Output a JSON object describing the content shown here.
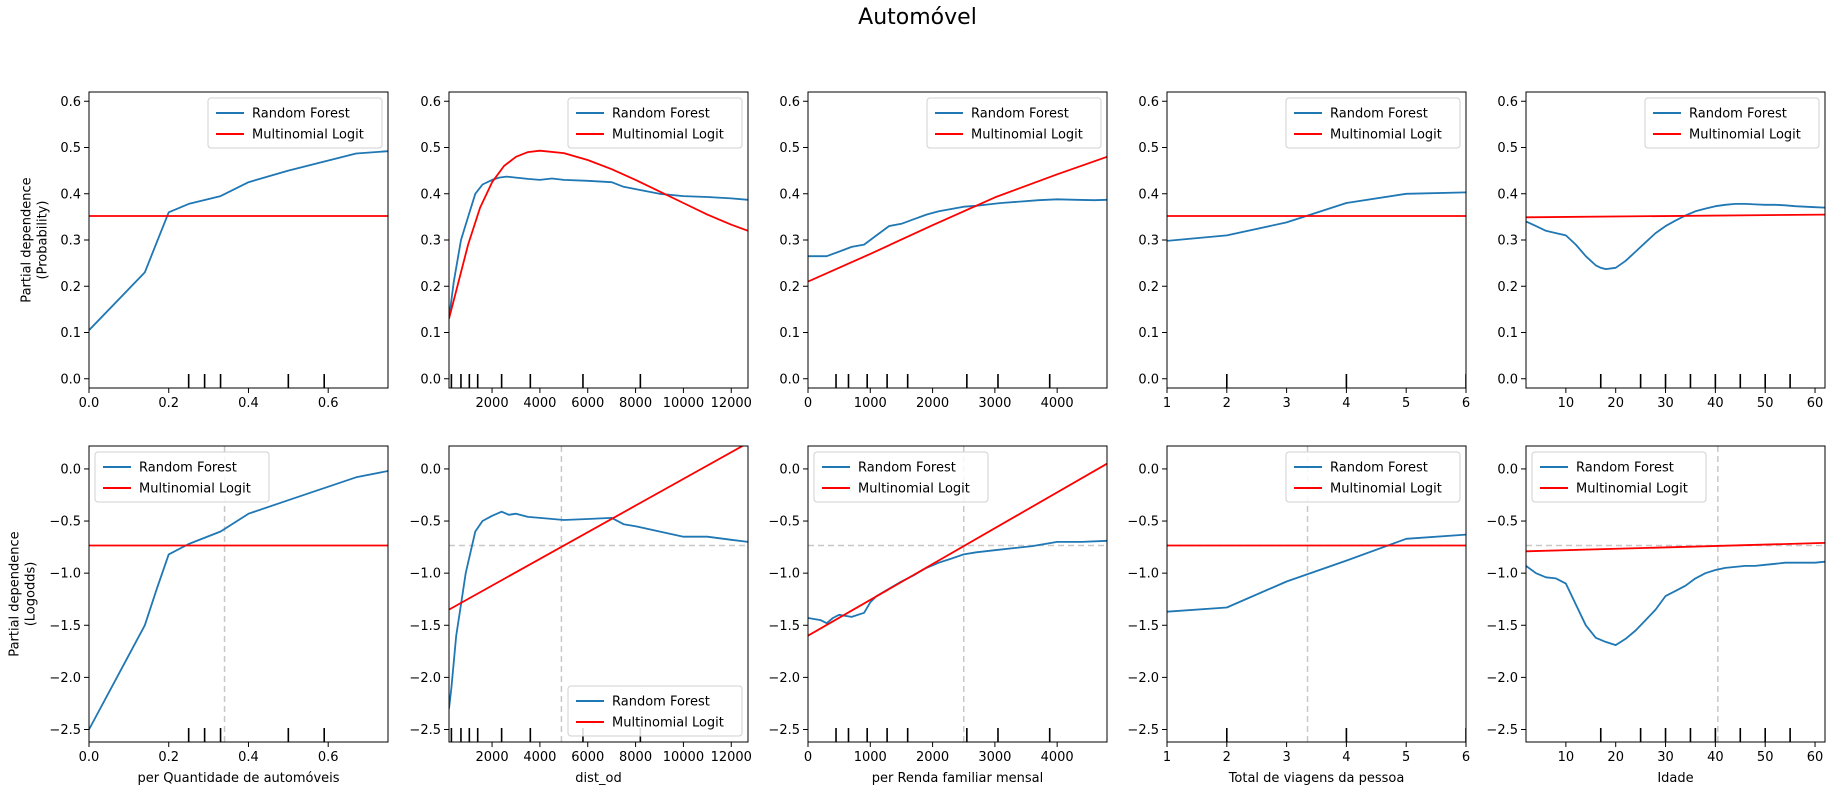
{
  "figure": {
    "title": "Automóvel"
  },
  "legend_labels": {
    "rf": "Random Forest",
    "ml": "Multinomial Logit"
  },
  "colors": {
    "rf": "#1f77b4",
    "ml": "#ff0000",
    "ref": "#c8c8c8",
    "axis": "#000000"
  },
  "chart_data": [
    {
      "type": "line",
      "row": 0,
      "col": 0,
      "xlabel": "",
      "ylabel": [
        "Partial dependence",
        "(Probability)"
      ],
      "xlim": [
        0,
        0.75
      ],
      "ylim": [
        -0.02,
        0.62
      ],
      "xticks": [
        0.0,
        0.2,
        0.4,
        0.6
      ],
      "xtick_labels": [
        "0.0",
        "0.2",
        "0.4",
        "0.6"
      ],
      "yticks": [
        0.0,
        0.1,
        0.2,
        0.3,
        0.4,
        0.5,
        0.6
      ],
      "ytick_labels": [
        "0.0",
        "0.1",
        "0.2",
        "0.3",
        "0.4",
        "0.5",
        "0.6"
      ],
      "legend_position": "upper right",
      "rug": [
        0.25,
        0.29,
        0.33,
        0.5,
        0.59
      ],
      "series": [
        {
          "name": "Random Forest",
          "color": "#1f77b4",
          "x": [
            0.0,
            0.14,
            0.2,
            0.25,
            0.33,
            0.4,
            0.5,
            0.67,
            0.75
          ],
          "y": [
            0.105,
            0.23,
            0.36,
            0.378,
            0.395,
            0.425,
            0.45,
            0.487,
            0.492
          ]
        },
        {
          "name": "Multinomial Logit",
          "color": "#ff0000",
          "x": [
            0.0,
            0.75
          ],
          "y": [
            0.352,
            0.352
          ]
        }
      ]
    },
    {
      "type": "line",
      "row": 0,
      "col": 1,
      "xlabel": "",
      "ylabel": [],
      "xlim": [
        200,
        12700
      ],
      "ylim": [
        -0.02,
        0.62
      ],
      "xticks": [
        2000,
        4000,
        6000,
        8000,
        10000,
        12000
      ],
      "xtick_labels": [
        "2000",
        "4000",
        "6000",
        "8000",
        "10000",
        "12000"
      ],
      "yticks": [
        0.0,
        0.1,
        0.2,
        0.3,
        0.4,
        0.5,
        0.6
      ],
      "ytick_labels": [
        "0.0",
        "0.1",
        "0.2",
        "0.3",
        "0.4",
        "0.5",
        "0.6"
      ],
      "legend_position": "upper right",
      "rug": [
        300,
        700,
        1050,
        1400,
        2400,
        3600,
        5800,
        8200
      ],
      "series": [
        {
          "name": "Random Forest",
          "color": "#1f77b4",
          "x": [
            200,
            400,
            700,
            1000,
            1300,
            1600,
            2000,
            2300,
            2600,
            3000,
            3500,
            4000,
            4500,
            5000,
            6000,
            7000,
            7500,
            8000,
            9000,
            10000,
            11000,
            12000,
            12700
          ],
          "y": [
            0.13,
            0.21,
            0.3,
            0.35,
            0.4,
            0.42,
            0.43,
            0.435,
            0.437,
            0.435,
            0.432,
            0.43,
            0.433,
            0.43,
            0.428,
            0.425,
            0.415,
            0.41,
            0.4,
            0.395,
            0.393,
            0.39,
            0.387
          ]
        },
        {
          "name": "Multinomial Logit",
          "color": "#ff0000",
          "x": [
            200,
            500,
            1000,
            1500,
            2000,
            2500,
            3000,
            3500,
            4000,
            5000,
            6000,
            7000,
            8000,
            9000,
            10000,
            11000,
            12000,
            12700
          ],
          "y": [
            0.13,
            0.19,
            0.29,
            0.37,
            0.425,
            0.46,
            0.48,
            0.49,
            0.493,
            0.488,
            0.473,
            0.453,
            0.43,
            0.405,
            0.38,
            0.355,
            0.333,
            0.32
          ]
        }
      ]
    },
    {
      "type": "line",
      "row": 0,
      "col": 2,
      "xlabel": "",
      "ylabel": [],
      "xlim": [
        0,
        4800
      ],
      "ylim": [
        -0.02,
        0.62
      ],
      "xticks": [
        0,
        1000,
        2000,
        3000,
        4000
      ],
      "xtick_labels": [
        "0",
        "1000",
        "2000",
        "3000",
        "4000"
      ],
      "yticks": [
        0.0,
        0.1,
        0.2,
        0.3,
        0.4,
        0.5,
        0.6
      ],
      "ytick_labels": [
        "0.0",
        "0.1",
        "0.2",
        "0.3",
        "0.4",
        "0.5",
        "0.6"
      ],
      "legend_position": "upper right",
      "rug": [
        450,
        650,
        950,
        1270,
        1600,
        2550,
        3050,
        3880
      ],
      "series": [
        {
          "name": "Random Forest",
          "color": "#1f77b4",
          "x": [
            0,
            300,
            500,
            700,
            900,
            1100,
            1300,
            1500,
            1700,
            1900,
            2100,
            2300,
            2500,
            2700,
            2900,
            3100,
            3400,
            3700,
            4000,
            4300,
            4600,
            4800
          ],
          "y": [
            0.265,
            0.265,
            0.275,
            0.285,
            0.29,
            0.31,
            0.33,
            0.335,
            0.345,
            0.355,
            0.362,
            0.367,
            0.372,
            0.374,
            0.377,
            0.38,
            0.383,
            0.386,
            0.388,
            0.387,
            0.386,
            0.387
          ]
        },
        {
          "name": "Multinomial Logit",
          "color": "#ff0000",
          "x": [
            0,
            1000,
            2000,
            3000,
            4000,
            4800
          ],
          "y": [
            0.21,
            0.27,
            0.332,
            0.392,
            0.442,
            0.48
          ]
        }
      ]
    },
    {
      "type": "line",
      "row": 0,
      "col": 3,
      "xlabel": "",
      "ylabel": [],
      "xlim": [
        1,
        6
      ],
      "ylim": [
        -0.02,
        0.62
      ],
      "xticks": [
        1,
        2,
        3,
        4,
        5,
        6
      ],
      "xtick_labels": [
        "1",
        "2",
        "3",
        "4",
        "5",
        "6"
      ],
      "yticks": [
        0.0,
        0.1,
        0.2,
        0.3,
        0.4,
        0.5,
        0.6
      ],
      "ytick_labels": [
        "0.0",
        "0.1",
        "0.2",
        "0.3",
        "0.4",
        "0.5",
        "0.6"
      ],
      "legend_position": "upper right",
      "rug": [
        2,
        4,
        6
      ],
      "series": [
        {
          "name": "Random Forest",
          "color": "#1f77b4",
          "x": [
            1,
            2,
            3,
            4,
            5,
            6
          ],
          "y": [
            0.298,
            0.31,
            0.338,
            0.38,
            0.4,
            0.403
          ]
        },
        {
          "name": "Multinomial Logit",
          "color": "#ff0000",
          "x": [
            1,
            6
          ],
          "y": [
            0.352,
            0.352
          ]
        }
      ]
    },
    {
      "type": "line",
      "row": 0,
      "col": 4,
      "xlabel": "",
      "ylabel": [],
      "xlim": [
        2,
        62
      ],
      "ylim": [
        -0.02,
        0.62
      ],
      "xticks": [
        10,
        20,
        30,
        40,
        50,
        60
      ],
      "xtick_labels": [
        "10",
        "20",
        "30",
        "40",
        "50",
        "60"
      ],
      "yticks": [
        0.0,
        0.1,
        0.2,
        0.3,
        0.4,
        0.5,
        0.6
      ],
      "ytick_labels": [
        "0.0",
        "0.1",
        "0.2",
        "0.3",
        "0.4",
        "0.5",
        "0.6"
      ],
      "legend_position": "upper right",
      "rug": [
        17,
        25,
        30,
        35,
        40,
        45,
        50,
        55
      ],
      "series": [
        {
          "name": "Random Forest",
          "color": "#1f77b4",
          "x": [
            2,
            4,
            6,
            8,
            10,
            12,
            14,
            16,
            17,
            18,
            20,
            22,
            24,
            26,
            28,
            30,
            32,
            34,
            36,
            38,
            40,
            42,
            44,
            46,
            48,
            50,
            52,
            54,
            56,
            58,
            60,
            62
          ],
          "y": [
            0.34,
            0.33,
            0.32,
            0.315,
            0.31,
            0.29,
            0.265,
            0.245,
            0.24,
            0.237,
            0.24,
            0.255,
            0.275,
            0.295,
            0.315,
            0.33,
            0.342,
            0.353,
            0.362,
            0.368,
            0.373,
            0.376,
            0.378,
            0.378,
            0.377,
            0.376,
            0.376,
            0.375,
            0.373,
            0.372,
            0.371,
            0.37
          ]
        },
        {
          "name": "Multinomial Logit",
          "color": "#ff0000",
          "x": [
            2,
            62
          ],
          "y": [
            0.349,
            0.355
          ]
        }
      ]
    },
    {
      "type": "line",
      "row": 1,
      "col": 0,
      "xlabel": "per Quantidade de automóveis",
      "ylabel": [
        "Partial dependence",
        "(Logodds)"
      ],
      "xlim": [
        0,
        0.75
      ],
      "ylim": [
        -2.62,
        0.22
      ],
      "xticks": [
        0.0,
        0.2,
        0.4,
        0.6
      ],
      "xtick_labels": [
        "0.0",
        "0.2",
        "0.4",
        "0.6"
      ],
      "yticks": [
        -2.5,
        -2.0,
        -1.5,
        -1.0,
        -0.5,
        0.0
      ],
      "ytick_labels": [
        "−2.5",
        "−2.0",
        "−1.5",
        "−1.0",
        "−0.5",
        "0.0"
      ],
      "legend_position": "upper left",
      "rug": [
        0.25,
        0.29,
        0.33,
        0.5,
        0.59
      ],
      "ref_vline": 0.34,
      "series": [
        {
          "name": "Random Forest",
          "color": "#1f77b4",
          "x": [
            0.0,
            0.14,
            0.17,
            0.2,
            0.25,
            0.33,
            0.4,
            0.5,
            0.67,
            0.75
          ],
          "y": [
            -2.5,
            -1.5,
            -1.15,
            -0.82,
            -0.72,
            -0.6,
            -0.43,
            -0.3,
            -0.08,
            -0.02
          ]
        },
        {
          "name": "Multinomial Logit",
          "color": "#ff0000",
          "x": [
            0.0,
            0.75
          ],
          "y": [
            -0.735,
            -0.735
          ]
        }
      ]
    },
    {
      "type": "line",
      "row": 1,
      "col": 1,
      "xlabel": "dist_od",
      "ylabel": [],
      "xlim": [
        200,
        12700
      ],
      "ylim": [
        -2.62,
        0.22
      ],
      "xticks": [
        2000,
        4000,
        6000,
        8000,
        10000,
        12000
      ],
      "xtick_labels": [
        "2000",
        "4000",
        "6000",
        "8000",
        "10000",
        "12000"
      ],
      "yticks": [
        -2.5,
        -2.0,
        -1.5,
        -1.0,
        -0.5,
        0.0
      ],
      "ytick_labels": [
        "−2.5",
        "−2.0",
        "−1.5",
        "−1.0",
        "−0.5",
        "0.0"
      ],
      "legend_position": "lower right",
      "rug": [
        300,
        700,
        1050,
        1400,
        2400,
        3600,
        5800,
        8200
      ],
      "ref_vline": 4900,
      "ref_hline": -0.735,
      "series": [
        {
          "name": "Random Forest",
          "color": "#1f77b4",
          "x": [
            200,
            300,
            500,
            700,
            900,
            1100,
            1300,
            1600,
            2000,
            2400,
            2700,
            3000,
            3500,
            4000,
            5000,
            6000,
            7000,
            7500,
            8000,
            9000,
            10000,
            11000,
            12000,
            12700
          ],
          "y": [
            -2.3,
            -2.1,
            -1.6,
            -1.3,
            -1.0,
            -0.8,
            -0.6,
            -0.5,
            -0.45,
            -0.41,
            -0.44,
            -0.43,
            -0.46,
            -0.47,
            -0.49,
            -0.48,
            -0.47,
            -0.53,
            -0.55,
            -0.6,
            -0.65,
            -0.65,
            -0.68,
            -0.7
          ]
        },
        {
          "name": "Multinomial Logit",
          "color": "#ff0000",
          "x": [
            200,
            12700
          ],
          "y": [
            -1.35,
            0.25
          ]
        }
      ]
    },
    {
      "type": "line",
      "row": 1,
      "col": 2,
      "xlabel": "per Renda familiar mensal",
      "ylabel": [],
      "xlim": [
        0,
        4800
      ],
      "ylim": [
        -2.62,
        0.22
      ],
      "xticks": [
        0,
        1000,
        2000,
        3000,
        4000
      ],
      "xtick_labels": [
        "0",
        "1000",
        "2000",
        "3000",
        "4000"
      ],
      "yticks": [
        -2.5,
        -2.0,
        -1.5,
        -1.0,
        -0.5,
        0.0
      ],
      "ytick_labels": [
        "−2.5",
        "−2.0",
        "−1.5",
        "−1.0",
        "−0.5",
        "0.0"
      ],
      "legend_position": "upper left",
      "rug": [
        450,
        650,
        950,
        1270,
        1600,
        2550,
        3050,
        3880
      ],
      "ref_vline": 2500,
      "ref_hline": -0.735,
      "series": [
        {
          "name": "Random Forest",
          "color": "#1f77b4",
          "x": [
            0,
            200,
            300,
            400,
            500,
            700,
            900,
            1000,
            1100,
            1300,
            1500,
            1700,
            1900,
            2100,
            2300,
            2500,
            2700,
            3000,
            3300,
            3600,
            4000,
            4400,
            4800
          ],
          "y": [
            -1.43,
            -1.45,
            -1.48,
            -1.43,
            -1.4,
            -1.42,
            -1.38,
            -1.28,
            -1.22,
            -1.15,
            -1.08,
            -1.02,
            -0.95,
            -0.9,
            -0.86,
            -0.82,
            -0.8,
            -0.78,
            -0.76,
            -0.74,
            -0.7,
            -0.7,
            -0.69
          ]
        },
        {
          "name": "Multinomial Logit",
          "color": "#ff0000",
          "x": [
            0,
            4800
          ],
          "y": [
            -1.6,
            0.05
          ]
        }
      ]
    },
    {
      "type": "line",
      "row": 1,
      "col": 3,
      "xlabel": "Total de viagens da pessoa",
      "ylabel": [],
      "xlim": [
        1,
        6
      ],
      "ylim": [
        -2.62,
        0.22
      ],
      "xticks": [
        1,
        2,
        3,
        4,
        5,
        6
      ],
      "xtick_labels": [
        "1",
        "2",
        "3",
        "4",
        "5",
        "6"
      ],
      "yticks": [
        -2.5,
        -2.0,
        -1.5,
        -1.0,
        -0.5,
        0.0
      ],
      "ytick_labels": [
        "−2.5",
        "−2.0",
        "−1.5",
        "−1.0",
        "−0.5",
        "0.0"
      ],
      "legend_position": "upper right",
      "rug": [
        2,
        4,
        6
      ],
      "ref_vline": 3.35,
      "ref_hline": -0.735,
      "series": [
        {
          "name": "Random Forest",
          "color": "#1f77b4",
          "x": [
            1,
            2,
            3,
            4,
            5,
            6
          ],
          "y": [
            -1.37,
            -1.33,
            -1.08,
            -0.88,
            -0.67,
            -0.63
          ]
        },
        {
          "name": "Multinomial Logit",
          "color": "#ff0000",
          "x": [
            1,
            6
          ],
          "y": [
            -0.735,
            -0.735
          ]
        }
      ]
    },
    {
      "type": "line",
      "row": 1,
      "col": 4,
      "xlabel": "Idade",
      "ylabel": [],
      "xlim": [
        2,
        62
      ],
      "ylim": [
        -2.62,
        0.22
      ],
      "xticks": [
        10,
        20,
        30,
        40,
        50,
        60
      ],
      "xtick_labels": [
        "10",
        "20",
        "30",
        "40",
        "50",
        "60"
      ],
      "yticks": [
        -2.5,
        -2.0,
        -1.5,
        -1.0,
        -0.5,
        0.0
      ],
      "ytick_labels": [
        "−2.5",
        "−2.0",
        "−1.5",
        "−1.0",
        "−0.5",
        "0.0"
      ],
      "legend_position": "upper left",
      "rug": [
        17,
        25,
        30,
        35,
        40,
        45,
        50,
        55
      ],
      "ref_vline": 40.5,
      "ref_hline": -0.735,
      "series": [
        {
          "name": "Random Forest",
          "color": "#1f77b4",
          "x": [
            2,
            4,
            6,
            8,
            10,
            12,
            14,
            16,
            18,
            20,
            22,
            24,
            26,
            28,
            30,
            32,
            34,
            36,
            38,
            40,
            42,
            44,
            46,
            48,
            50,
            52,
            54,
            56,
            58,
            60,
            62
          ],
          "y": [
            -0.93,
            -1.0,
            -1.04,
            -1.05,
            -1.1,
            -1.3,
            -1.5,
            -1.62,
            -1.66,
            -1.69,
            -1.63,
            -1.55,
            -1.45,
            -1.35,
            -1.22,
            -1.17,
            -1.12,
            -1.05,
            -1.0,
            -0.97,
            -0.95,
            -0.94,
            -0.93,
            -0.93,
            -0.92,
            -0.91,
            -0.9,
            -0.9,
            -0.9,
            -0.9,
            -0.89
          ]
        },
        {
          "name": "Multinomial Logit",
          "color": "#ff0000",
          "x": [
            2,
            62
          ],
          "y": [
            -0.79,
            -0.71
          ]
        }
      ]
    }
  ]
}
